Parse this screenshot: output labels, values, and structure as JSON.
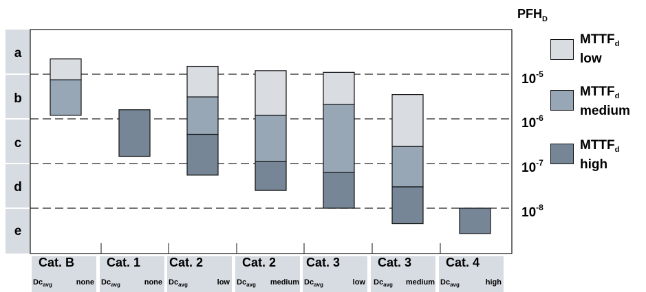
{
  "pfh": {
    "symbol": "PFH",
    "subscript": "D"
  },
  "scale_labels": [
    {
      "base": "10",
      "exp": "-5"
    },
    {
      "base": "10",
      "exp": "-6"
    },
    {
      "base": "10",
      "exp": "-7"
    },
    {
      "base": "10",
      "exp": "-8"
    }
  ],
  "performance_levels": [
    "a",
    "b",
    "c",
    "d",
    "e"
  ],
  "categories": [
    {
      "cat": "Cat. B",
      "dc": "Dc",
      "dc_sub": "avg",
      "level": "none"
    },
    {
      "cat": "Cat. 1",
      "dc": "Dc",
      "dc_sub": "avg",
      "level": "none"
    },
    {
      "cat": "Cat. 2",
      "dc": "Dc",
      "dc_sub": "avg",
      "level": "low"
    },
    {
      "cat": "Cat. 2",
      "dc": "Dc",
      "dc_sub": "avg",
      "level": "medium"
    },
    {
      "cat": "Cat. 3",
      "dc": "Dc",
      "dc_sub": "avg",
      "level": "low"
    },
    {
      "cat": "Cat. 3",
      "dc": "Dc",
      "dc_sub": "avg",
      "level": "medium"
    },
    {
      "cat": "Cat. 4",
      "dc": "Dc",
      "dc_sub": "avg",
      "level": "high"
    }
  ],
  "legend": [
    {
      "name": "MTTF",
      "sub": "d",
      "level": "low",
      "color": "#d9dde2"
    },
    {
      "name": "MTTF",
      "sub": "d",
      "level": "medium",
      "color": "#97a7b6"
    },
    {
      "name": "MTTF",
      "sub": "d",
      "level": "high",
      "color": "#768696"
    }
  ],
  "colors": {
    "low": "#d9dde2",
    "medium": "#97a7b6",
    "high": "#768696",
    "panel": "#d7dce2"
  },
  "bars": [
    {
      "category": 0,
      "segments": [
        {
          "mttf": "low",
          "pfh_top": 2.2e-05,
          "pfh_bottom": 7.5e-06
        },
        {
          "mttf": "medium",
          "pfh_top": 7.5e-06,
          "pfh_bottom": 1.2e-06
        }
      ]
    },
    {
      "category": 1,
      "segments": [
        {
          "mttf": "high",
          "pfh_top": 1.6e-06,
          "pfh_bottom": 1.45e-07
        }
      ]
    },
    {
      "category": 2,
      "segments": [
        {
          "mttf": "low",
          "pfh_top": 1.5e-05,
          "pfh_bottom": 3.1e-06
        },
        {
          "mttf": "medium",
          "pfh_top": 3.1e-06,
          "pfh_bottom": 4.5e-07
        },
        {
          "mttf": "high",
          "pfh_top": 4.5e-07,
          "pfh_bottom": 5.5e-08
        }
      ]
    },
    {
      "category": 3,
      "segments": [
        {
          "mttf": "low",
          "pfh_top": 1.2e-05,
          "pfh_bottom": 1.2e-06
        },
        {
          "mttf": "medium",
          "pfh_top": 1.2e-06,
          "pfh_bottom": 1.1e-07
        },
        {
          "mttf": "high",
          "pfh_top": 1.1e-07,
          "pfh_bottom": 2.5e-08
        }
      ]
    },
    {
      "category": 4,
      "segments": [
        {
          "mttf": "low",
          "pfh_top": 1.1e-05,
          "pfh_bottom": 2.1e-06
        },
        {
          "mttf": "medium",
          "pfh_top": 2.1e-06,
          "pfh_bottom": 6.3e-08
        },
        {
          "mttf": "high",
          "pfh_top": 6.3e-08,
          "pfh_bottom": 1e-08
        }
      ]
    },
    {
      "category": 5,
      "segments": [
        {
          "mttf": "low",
          "pfh_top": 3.5e-06,
          "pfh_bottom": 2.4e-07
        },
        {
          "mttf": "medium",
          "pfh_top": 2.4e-07,
          "pfh_bottom": 3e-08
        },
        {
          "mttf": "high",
          "pfh_top": 3e-08,
          "pfh_bottom": 4.5e-09
        }
      ]
    },
    {
      "category": 6,
      "segments": [
        {
          "mttf": "high",
          "pfh_top": 1e-08,
          "pfh_bottom": 2.7e-09
        }
      ]
    }
  ]
}
